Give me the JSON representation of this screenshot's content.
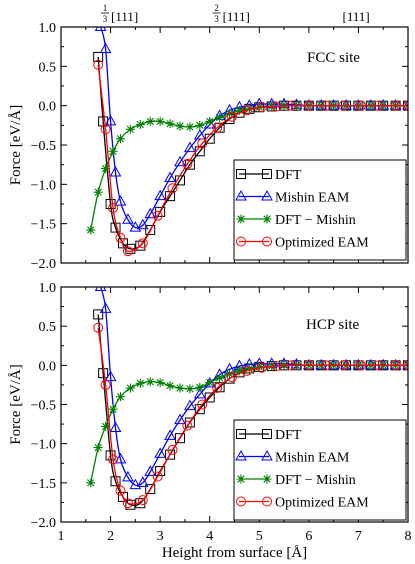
{
  "chart_data": [
    {
      "type": "line",
      "annotation": "FCC site",
      "ylabel": "Force [eV/Å]",
      "xlabel": "",
      "xlim": [
        1,
        8
      ],
      "ylim": [
        -2.0,
        1.0
      ],
      "yticks": [
        -2.0,
        -1.5,
        -1.0,
        -0.5,
        0.0,
        0.5,
        1.0
      ],
      "ytick_labels": [
        "−2.0",
        "−1.5",
        "−1.0",
        "−0.5",
        "0.0",
        "0.5",
        "1.0"
      ],
      "top_ticks": [
        {
          "x": 2.05,
          "num": "1",
          "den": "3",
          "label": "[111]"
        },
        {
          "x": 4.3,
          "num": "2",
          "den": "3",
          "label": "[111]"
        },
        {
          "x": 6.8,
          "num": "",
          "den": "",
          "label": "[111]"
        }
      ],
      "legend_position": "right",
      "series": [
        {
          "name": "DFT",
          "color": "#000000",
          "marker": "square",
          "x": [
            1.75,
            1.85,
            2.0,
            2.1,
            2.25,
            2.4,
            2.6,
            2.8,
            3.0,
            3.2,
            3.4,
            3.6,
            3.8,
            4.0,
            4.2,
            4.4,
            4.6,
            4.8,
            5.0,
            5.25,
            5.5,
            5.75,
            6.0,
            6.25,
            6.5,
            6.75,
            7.0,
            7.25,
            7.5,
            7.75,
            8.0
          ],
          "y": [
            0.62,
            -0.2,
            -1.25,
            -1.55,
            -1.75,
            -1.82,
            -1.78,
            -1.58,
            -1.35,
            -1.15,
            -0.95,
            -0.75,
            -0.58,
            -0.42,
            -0.28,
            -0.17,
            -0.09,
            -0.04,
            -0.02,
            -0.01,
            0.0,
            0.0,
            0.0,
            0.0,
            0.0,
            0.0,
            0.0,
            0.0,
            0.0,
            0.0,
            0.0
          ]
        },
        {
          "name": "Mishin EAM",
          "color": "#0000ff",
          "marker": "triangle",
          "x": [
            1.8,
            1.9,
            2.0,
            2.1,
            2.2,
            2.35,
            2.5,
            2.65,
            2.8,
            3.0,
            3.2,
            3.4,
            3.6,
            3.8,
            4.0,
            4.2,
            4.4,
            4.6,
            4.8,
            5.0,
            5.25,
            5.5,
            5.75,
            6.0,
            6.25,
            6.5,
            6.75,
            7.0,
            7.25,
            7.5,
            7.75,
            8.0
          ],
          "y": [
            1.0,
            0.72,
            -0.2,
            -0.85,
            -1.22,
            -1.45,
            -1.55,
            -1.52,
            -1.38,
            -1.15,
            -0.92,
            -0.72,
            -0.54,
            -0.38,
            -0.24,
            -0.13,
            -0.06,
            -0.02,
            0.0,
            0.02,
            0.02,
            0.02,
            0.01,
            0.0,
            0.0,
            0.0,
            0.0,
            0.0,
            0.0,
            0.0,
            0.0,
            0.0
          ]
        },
        {
          "name": "DFT − Mishin",
          "color": "#008000",
          "marker": "star",
          "x": [
            1.6,
            1.75,
            1.9,
            2.05,
            2.2,
            2.4,
            2.6,
            2.8,
            3.0,
            3.2,
            3.4,
            3.6,
            3.8,
            4.0,
            4.2,
            4.4,
            4.6,
            4.8,
            5.0,
            5.25,
            5.5,
            5.75,
            6.0,
            6.25,
            6.5,
            6.75,
            7.0,
            7.25,
            7.5,
            7.75,
            8.0
          ],
          "y": [
            -1.58,
            -1.1,
            -0.8,
            -0.58,
            -0.42,
            -0.3,
            -0.24,
            -0.2,
            -0.2,
            -0.23,
            -0.26,
            -0.27,
            -0.25,
            -0.2,
            -0.15,
            -0.1,
            -0.06,
            -0.04,
            -0.02,
            -0.01,
            0.0,
            0.0,
            0.0,
            0.0,
            0.0,
            0.0,
            0.0,
            0.0,
            0.0,
            0.0,
            0.0
          ]
        },
        {
          "name": "Optimized EAM",
          "color": "#ff0000",
          "marker": "circle",
          "x": [
            1.75,
            1.9,
            2.05,
            2.2,
            2.35,
            2.65,
            2.95,
            3.25,
            3.55,
            3.85,
            4.15,
            4.45,
            4.75,
            5.05,
            5.35,
            5.65,
            6.0,
            6.35,
            6.7,
            7.05,
            7.4,
            7.75,
            8.0
          ],
          "y": [
            0.52,
            -0.3,
            -1.3,
            -1.68,
            -1.85,
            -1.75,
            -1.4,
            -1.05,
            -0.74,
            -0.48,
            -0.28,
            -0.14,
            -0.06,
            -0.02,
            -0.01,
            0.0,
            0.0,
            0.0,
            0.0,
            0.0,
            0.0,
            0.0,
            0.0
          ]
        }
      ]
    },
    {
      "type": "line",
      "annotation": "HCP site",
      "ylabel": "Force [eV/Å]",
      "xlabel": "Height from surface [Å]",
      "xlim": [
        1,
        8
      ],
      "ylim": [
        -2.0,
        1.0
      ],
      "xticks": [
        1,
        2,
        3,
        4,
        5,
        6,
        7,
        8
      ],
      "yticks": [
        -2.0,
        -1.5,
        -1.0,
        -0.5,
        0.0,
        0.5,
        1.0
      ],
      "ytick_labels": [
        "−2.0",
        "−1.5",
        "−1.0",
        "−0.5",
        "0.0",
        "0.5",
        "1.0"
      ],
      "legend_position": "bottom-right",
      "series": [
        {
          "name": "DFT",
          "color": "#000000",
          "marker": "square",
          "x": [
            1.75,
            1.85,
            2.0,
            2.1,
            2.25,
            2.4,
            2.6,
            2.8,
            3.0,
            3.2,
            3.4,
            3.6,
            3.8,
            4.0,
            4.2,
            4.4,
            4.6,
            4.8,
            5.0,
            5.25,
            5.5,
            5.75,
            6.0,
            6.25,
            6.5,
            6.75,
            7.0,
            7.25,
            7.5,
            7.75,
            8.0
          ],
          "y": [
            0.65,
            -0.1,
            -1.15,
            -1.48,
            -1.68,
            -1.78,
            -1.76,
            -1.58,
            -1.35,
            -1.14,
            -0.93,
            -0.73,
            -0.56,
            -0.41,
            -0.28,
            -0.17,
            -0.09,
            -0.04,
            -0.02,
            -0.01,
            0.0,
            0.0,
            0.0,
            0.0,
            0.0,
            0.0,
            0.0,
            0.0,
            0.0,
            0.0,
            0.0
          ]
        },
        {
          "name": "Mishin EAM",
          "color": "#0000ff",
          "marker": "triangle",
          "x": [
            1.8,
            1.9,
            2.0,
            2.1,
            2.2,
            2.35,
            2.5,
            2.65,
            2.8,
            3.0,
            3.2,
            3.4,
            3.6,
            3.8,
            4.0,
            4.2,
            4.4,
            4.6,
            4.8,
            5.0,
            5.25,
            5.5,
            5.75,
            6.0,
            6.25,
            6.5,
            6.75,
            7.0,
            7.25,
            7.5,
            7.75,
            8.0
          ],
          "y": [
            1.0,
            0.72,
            -0.15,
            -0.8,
            -1.2,
            -1.43,
            -1.53,
            -1.5,
            -1.36,
            -1.13,
            -0.9,
            -0.7,
            -0.52,
            -0.37,
            -0.23,
            -0.12,
            -0.05,
            -0.01,
            0.01,
            0.02,
            0.02,
            0.02,
            0.01,
            0.0,
            0.0,
            0.0,
            0.0,
            0.0,
            0.0,
            0.0,
            0.0,
            0.0
          ]
        },
        {
          "name": "DFT − Mishin",
          "color": "#008000",
          "marker": "star",
          "x": [
            1.6,
            1.75,
            1.9,
            2.05,
            2.2,
            2.4,
            2.6,
            2.8,
            3.0,
            3.2,
            3.4,
            3.6,
            3.8,
            4.0,
            4.2,
            4.4,
            4.6,
            4.8,
            5.0,
            5.25,
            5.5,
            5.75,
            6.0,
            6.25,
            6.5,
            6.75,
            7.0,
            7.25,
            7.5,
            7.75,
            8.0
          ],
          "y": [
            -1.5,
            -1.05,
            -0.78,
            -0.56,
            -0.4,
            -0.29,
            -0.23,
            -0.21,
            -0.22,
            -0.26,
            -0.29,
            -0.3,
            -0.28,
            -0.22,
            -0.16,
            -0.11,
            -0.07,
            -0.04,
            -0.02,
            -0.01,
            0.0,
            0.0,
            0.0,
            0.0,
            0.0,
            0.0,
            0.0,
            0.0,
            0.0,
            0.0,
            0.0
          ]
        },
        {
          "name": "Optimized EAM",
          "color": "#ff0000",
          "marker": "circle",
          "x": [
            1.75,
            1.9,
            2.05,
            2.2,
            2.35,
            2.65,
            2.95,
            3.25,
            3.55,
            3.85,
            4.15,
            4.45,
            4.75,
            5.05,
            5.35,
            5.65,
            6.0,
            6.35,
            6.7,
            7.05,
            7.4,
            7.75,
            8.0
          ],
          "y": [
            0.48,
            -0.25,
            -1.2,
            -1.6,
            -1.76,
            -1.72,
            -1.42,
            -1.08,
            -0.77,
            -0.5,
            -0.29,
            -0.15,
            -0.07,
            -0.03,
            -0.01,
            0.0,
            0.0,
            0.0,
            0.0,
            0.0,
            0.0,
            0.0,
            0.0
          ]
        }
      ]
    }
  ]
}
